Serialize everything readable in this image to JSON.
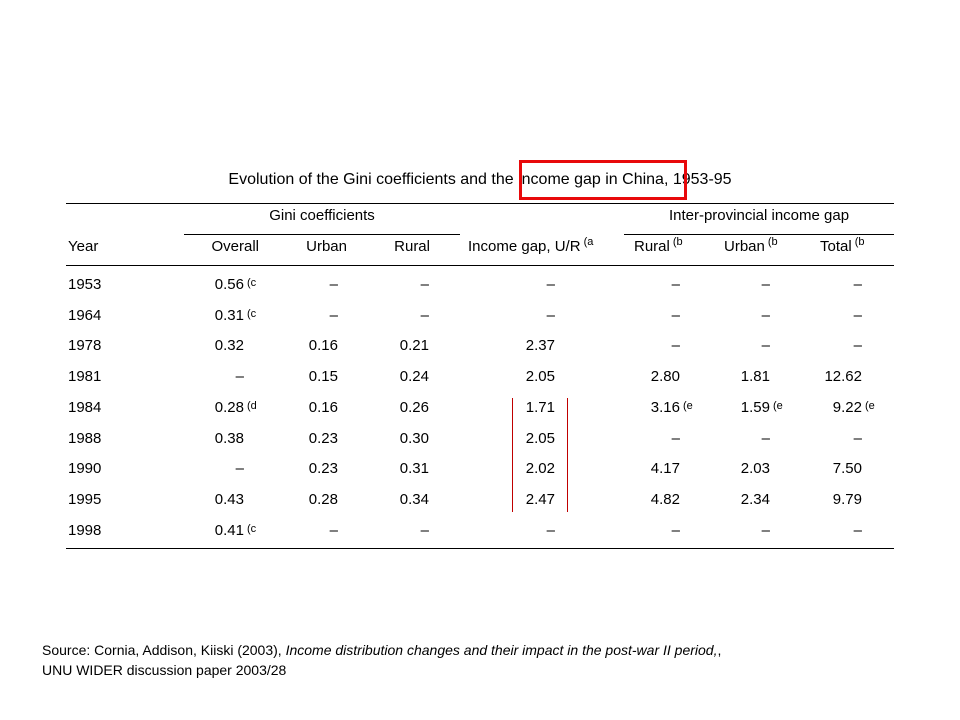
{
  "title": "Evolution of the Gini coefficients and the income gap in China, 1953-95",
  "group_headers": {
    "gini": "Gini coefficients",
    "interprovincial": "Inter-provincial income gap"
  },
  "columns": {
    "year": "Year",
    "overall": "Overall",
    "urban": "Urban",
    "rural": "Rural",
    "income_gap": "Income gap, U/R",
    "income_gap_note": "(a",
    "ip_rural": "Rural",
    "ip_rural_note": "(b",
    "ip_urban": "Urban",
    "ip_urban_note": "(b",
    "ip_total": "Total",
    "ip_total_note": "(b"
  },
  "rows": [
    {
      "year": "1953",
      "overall": "0.56",
      "overall_note": "(c",
      "urban": "–",
      "rural": "–",
      "gap": "–",
      "ip_rural": "–",
      "ip_rural_note": "",
      "ip_urban": "–",
      "ip_urban_note": "",
      "ip_total": "–",
      "ip_total_note": ""
    },
    {
      "year": "1964",
      "overall": "0.31",
      "overall_note": "(c",
      "urban": "–",
      "rural": "–",
      "gap": "–",
      "ip_rural": "–",
      "ip_rural_note": "",
      "ip_urban": "–",
      "ip_urban_note": "",
      "ip_total": "–",
      "ip_total_note": ""
    },
    {
      "year": "1978",
      "overall": "0.32",
      "overall_note": "",
      "urban": "0.16",
      "rural": "0.21",
      "gap": "2.37",
      "ip_rural": "–",
      "ip_rural_note": "",
      "ip_urban": "–",
      "ip_urban_note": "",
      "ip_total": "–",
      "ip_total_note": ""
    },
    {
      "year": "1981",
      "overall": "–",
      "overall_note": "",
      "urban": "0.15",
      "rural": "0.24",
      "gap": "2.05",
      "ip_rural": "2.80",
      "ip_rural_note": "",
      "ip_urban": "1.81",
      "ip_urban_note": "",
      "ip_total": "12.62",
      "ip_total_note": ""
    },
    {
      "year": "1984",
      "overall": "0.28",
      "overall_note": "(d",
      "urban": "0.16",
      "rural": "0.26",
      "gap": "1.71",
      "ip_rural": "3.16",
      "ip_rural_note": "(e",
      "ip_urban": "1.59",
      "ip_urban_note": "(e",
      "ip_total": "9.22",
      "ip_total_note": "(e"
    },
    {
      "year": "1988",
      "overall": "0.38",
      "overall_note": "",
      "urban": "0.23",
      "rural": "0.30",
      "gap": "2.05",
      "ip_rural": "–",
      "ip_rural_note": "",
      "ip_urban": "–",
      "ip_urban_note": "",
      "ip_total": "–",
      "ip_total_note": ""
    },
    {
      "year": "1990",
      "overall": "–",
      "overall_note": "",
      "urban": "0.23",
      "rural": "0.31",
      "gap": "2.02",
      "ip_rural": "4.17",
      "ip_rural_note": "",
      "ip_urban": "2.03",
      "ip_urban_note": "",
      "ip_total": "7.50",
      "ip_total_note": ""
    },
    {
      "year": "1995",
      "overall": "0.43",
      "overall_note": "",
      "urban": "0.28",
      "rural": "0.34",
      "gap": "2.47",
      "ip_rural": "4.82",
      "ip_rural_note": "",
      "ip_urban": "2.34",
      "ip_urban_note": "",
      "ip_total": "9.79",
      "ip_total_note": ""
    },
    {
      "year": "1998",
      "overall": "0.41",
      "overall_note": "(c",
      "urban": "–",
      "rural": "–",
      "gap": "–",
      "ip_rural": "–",
      "ip_rural_note": "",
      "ip_urban": "–",
      "ip_urban_note": "",
      "ip_total": "–",
      "ip_total_note": ""
    }
  ],
  "source": {
    "prefix": "Source: Cornia, Addison, Kiiski (2003), ",
    "italic": "Income distribution changes and their impact in the post-war II period,",
    "suffix": ", UNU WIDER discussion paper 2003/28"
  },
  "colors": {
    "highlight_box": "#e8090b",
    "highlight_lines": "#c00000"
  }
}
